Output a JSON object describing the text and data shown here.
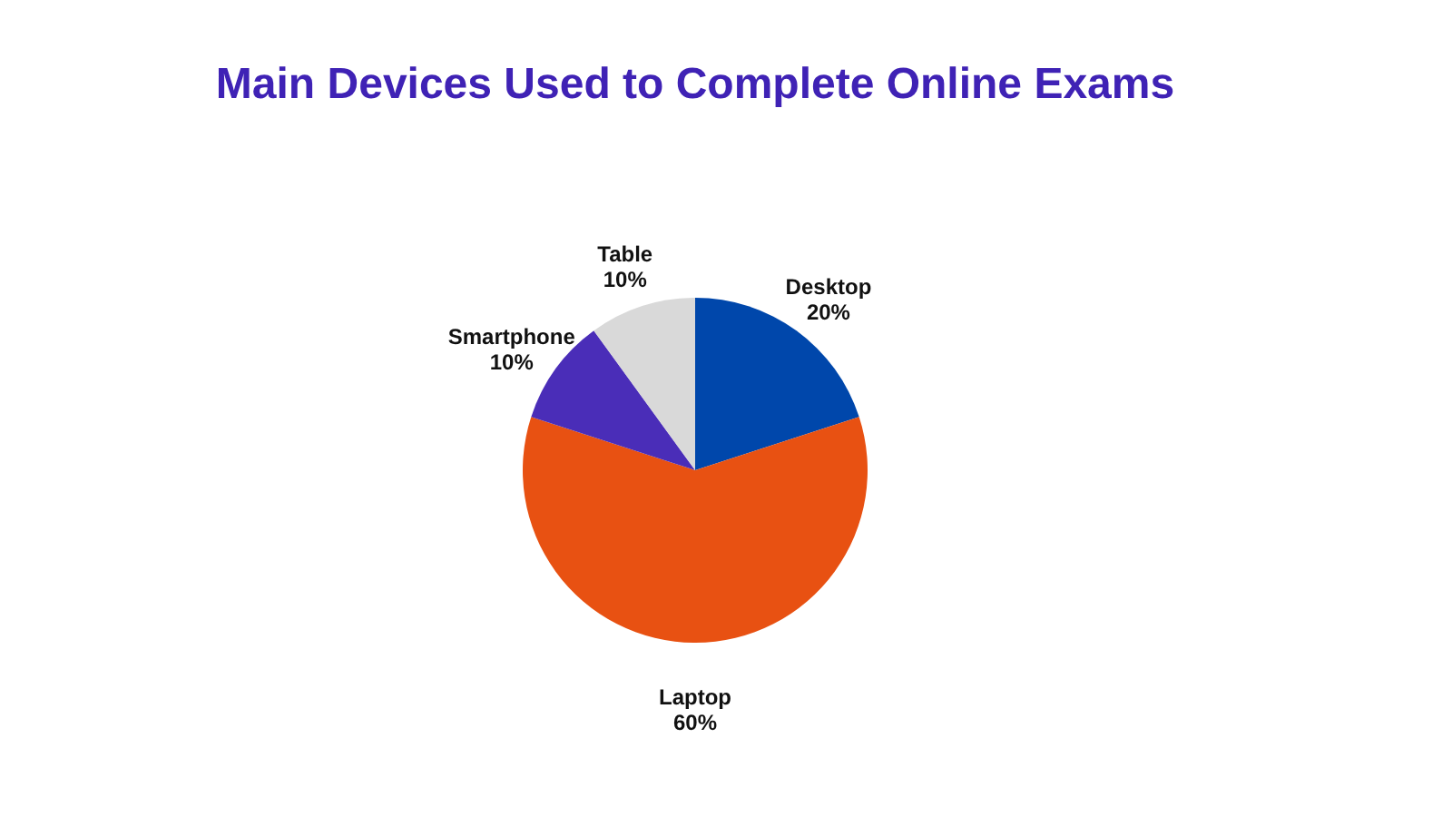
{
  "chart_data": {
    "type": "pie",
    "title": "Main Devices Used to Complete Online Exams",
    "categories": [
      "Desktop",
      "Laptop",
      "Smartphone",
      "Table"
    ],
    "values": [
      20,
      60,
      10,
      10
    ],
    "value_labels": [
      "20%",
      "60%",
      "10%",
      "10%"
    ],
    "colors": [
      "#0047ab",
      "#e85112",
      "#4a2db8",
      "#d9d9d9"
    ],
    "legend": false
  }
}
